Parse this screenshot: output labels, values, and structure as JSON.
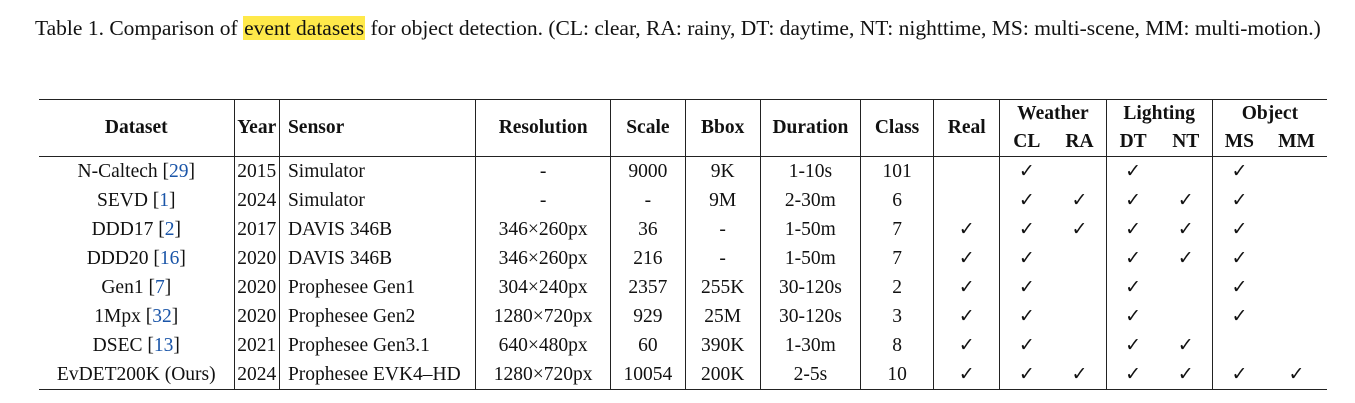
{
  "caption": {
    "prefix": "Table 1.  Comparison of ",
    "highlight": "event datasets",
    "suffix": " for object detection.  (CL: clear, RA: rainy, DT: daytime, NT: nighttime, MS: multi-scene, MM: multi-motion.)"
  },
  "headers": {
    "dataset": "Dataset",
    "year": "Year",
    "sensor": "Sensor",
    "resolution": "Resolution",
    "scale": "Scale",
    "bbox": "Bbox",
    "duration": "Duration",
    "class": "Class",
    "real": "Real",
    "weather": "Weather",
    "cl": "CL",
    "ra": "RA",
    "lighting": "Lighting",
    "dt": "DT",
    "nt": "NT",
    "object": "Object",
    "ms": "MS",
    "mm": "MM"
  },
  "check_glyph": "✓",
  "rows": [
    {
      "name": "N-Caltech",
      "cite": "29",
      "year": "2015",
      "sensor": "Simulator",
      "resolution": "-",
      "scale": "9000",
      "bbox": "9K",
      "duration": "1-10s",
      "class": "101",
      "real": "",
      "cl": "✓",
      "ra": "",
      "dt": "✓",
      "nt": "",
      "ms": "✓",
      "mm": ""
    },
    {
      "name": "SEVD",
      "cite": "1",
      "year": "2024",
      "sensor": "Simulator",
      "resolution": "-",
      "scale": "-",
      "bbox": "9M",
      "duration": "2-30m",
      "class": "6",
      "real": "",
      "cl": "✓",
      "ra": "✓",
      "dt": "✓",
      "nt": "✓",
      "ms": "✓",
      "mm": ""
    },
    {
      "name": "DDD17",
      "cite": "2",
      "year": "2017",
      "sensor": "DAVIS 346B",
      "resolution": "346×260px",
      "scale": "36",
      "bbox": "-",
      "duration": "1-50m",
      "class": "7",
      "real": "✓",
      "cl": "✓",
      "ra": "✓",
      "dt": "✓",
      "nt": "✓",
      "ms": "✓",
      "mm": ""
    },
    {
      "name": "DDD20",
      "cite": "16",
      "year": "2020",
      "sensor": "DAVIS 346B",
      "resolution": "346×260px",
      "scale": "216",
      "bbox": "-",
      "duration": "1-50m",
      "class": "7",
      "real": "✓",
      "cl": "✓",
      "ra": "",
      "dt": "✓",
      "nt": "✓",
      "ms": "✓",
      "mm": ""
    },
    {
      "name": "Gen1",
      "cite": "7",
      "year": "2020",
      "sensor": "Prophesee Gen1",
      "resolution": "304×240px",
      "scale": "2357",
      "bbox": "255K",
      "duration": "30-120s",
      "class": "2",
      "real": "✓",
      "cl": "✓",
      "ra": "",
      "dt": "✓",
      "nt": "",
      "ms": "✓",
      "mm": ""
    },
    {
      "name": "1Mpx",
      "cite": "32",
      "year": "2020",
      "sensor": "Prophesee Gen2",
      "resolution": "1280×720px",
      "scale": "929",
      "bbox": "25M",
      "duration": "30-120s",
      "class": "3",
      "real": "✓",
      "cl": "✓",
      "ra": "",
      "dt": "✓",
      "nt": "",
      "ms": "✓",
      "mm": ""
    },
    {
      "name": "DSEC",
      "cite": "13",
      "year": "2021",
      "sensor": "Prophesee Gen3.1",
      "resolution": "640×480px",
      "scale": "60",
      "bbox": "390K",
      "duration": "1-30m",
      "class": "8",
      "real": "✓",
      "cl": "✓",
      "ra": "",
      "dt": "✓",
      "nt": "✓",
      "ms": "",
      "mm": ""
    },
    {
      "name": "EvDET200K (Ours)",
      "cite": "",
      "year": "2024",
      "sensor": "Prophesee EVK4–HD",
      "resolution": "1280×720px",
      "scale": "10054",
      "bbox": "200K",
      "duration": "2-5s",
      "class": "10",
      "real": "✓",
      "cl": "✓",
      "ra": "✓",
      "dt": "✓",
      "nt": "✓",
      "ms": "✓",
      "mm": "✓"
    }
  ]
}
